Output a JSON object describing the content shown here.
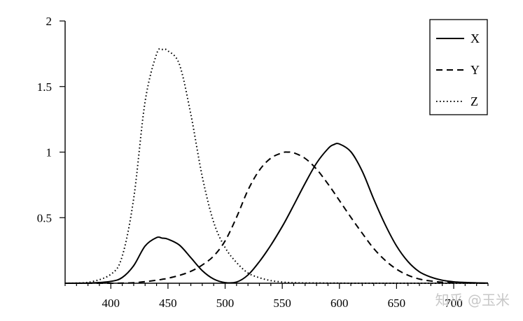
{
  "chart_data": {
    "type": "line",
    "title": "",
    "xlabel": "",
    "ylabel": "",
    "xlim": [
      360,
      730
    ],
    "ylim": [
      0,
      2
    ],
    "x_ticks_major": [
      400,
      450,
      500,
      550,
      600,
      650,
      700
    ],
    "x_ticks_minor_step": 10,
    "y_ticks": [
      0.5,
      1,
      1.5,
      2
    ],
    "y_tick_labels": [
      "0.5",
      "1",
      "1.5",
      "2"
    ],
    "x_tick_labels": [
      "400",
      "450",
      "500",
      "550",
      "600",
      "650",
      "700"
    ],
    "grid": false,
    "legend_position": "top-right",
    "x": [
      360,
      380,
      400,
      410,
      420,
      430,
      440,
      445,
      450,
      460,
      470,
      480,
      490,
      500,
      510,
      520,
      530,
      540,
      550,
      555,
      560,
      570,
      580,
      590,
      595,
      600,
      610,
      620,
      630,
      640,
      650,
      660,
      670,
      680,
      690,
      700,
      710,
      720,
      730
    ],
    "series": [
      {
        "name": "X",
        "style": "solid",
        "values": [
          0.0,
          0.001,
          0.014,
          0.044,
          0.134,
          0.284,
          0.348,
          0.344,
          0.336,
          0.291,
          0.195,
          0.096,
          0.032,
          0.005,
          0.009,
          0.063,
          0.165,
          0.29,
          0.433,
          0.512,
          0.595,
          0.762,
          0.916,
          1.026,
          1.057,
          1.062,
          1.003,
          0.854,
          0.642,
          0.448,
          0.284,
          0.165,
          0.087,
          0.047,
          0.023,
          0.011,
          0.006,
          0.003,
          0.001
        ]
      },
      {
        "name": "Y",
        "style": "dashed",
        "values": [
          0.0,
          0.0,
          0.0,
          0.001,
          0.004,
          0.012,
          0.023,
          0.03,
          0.038,
          0.06,
          0.091,
          0.139,
          0.208,
          0.323,
          0.503,
          0.71,
          0.862,
          0.954,
          0.995,
          1.0,
          0.995,
          0.952,
          0.87,
          0.757,
          0.695,
          0.631,
          0.503,
          0.381,
          0.265,
          0.175,
          0.107,
          0.061,
          0.032,
          0.017,
          0.008,
          0.004,
          0.002,
          0.001,
          0.0
        ]
      },
      {
        "name": "Z",
        "style": "dotted",
        "values": [
          0.0,
          0.006,
          0.068,
          0.207,
          0.646,
          1.386,
          1.747,
          1.783,
          1.772,
          1.669,
          1.288,
          0.813,
          0.465,
          0.272,
          0.158,
          0.078,
          0.042,
          0.02,
          0.009,
          0.006,
          0.004,
          0.002,
          0.002,
          0.001,
          0.001,
          0.001,
          0.0,
          0.0,
          0.0,
          0.0,
          0.0,
          0.0,
          0.0,
          0.0,
          0.0,
          0.0,
          0.0,
          0.0,
          0.0
        ]
      }
    ]
  },
  "watermark": "知乎 @玉米"
}
